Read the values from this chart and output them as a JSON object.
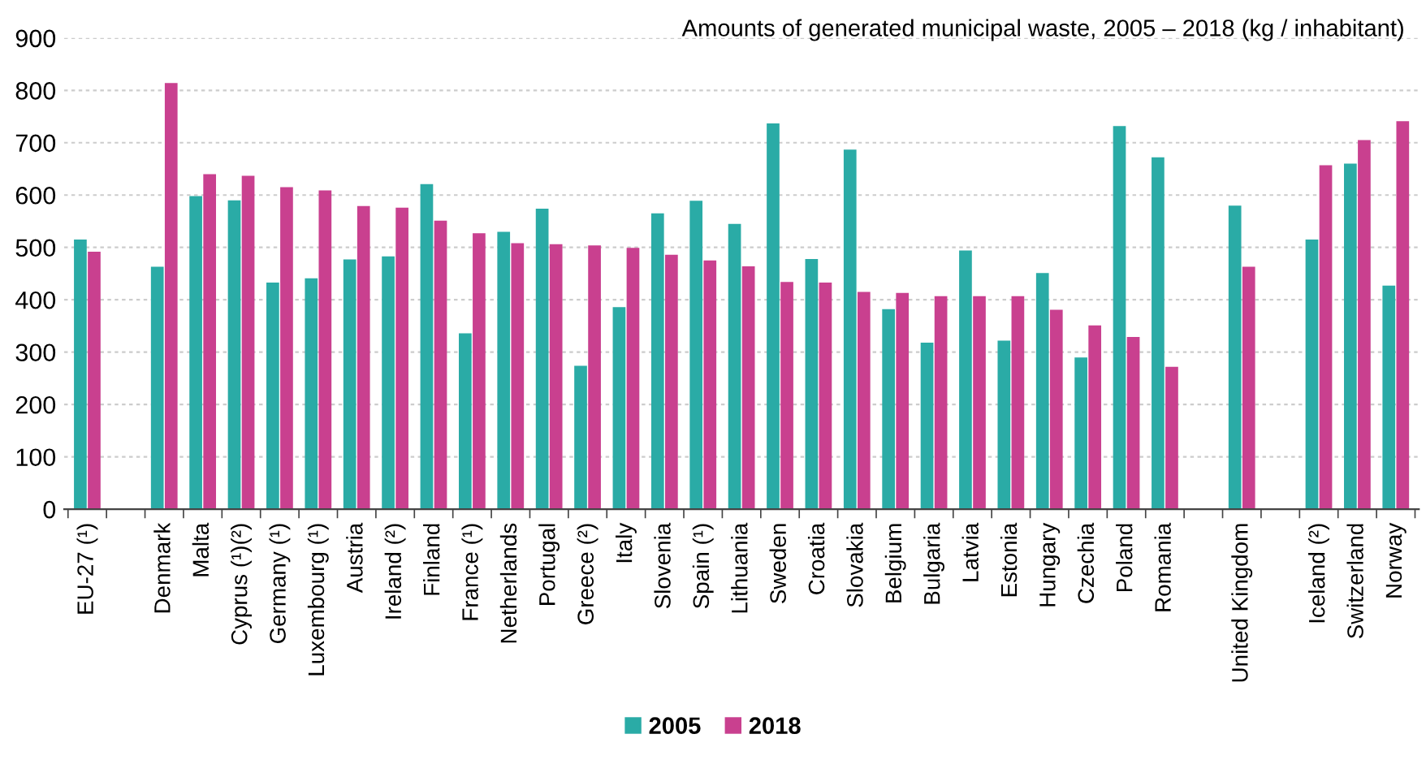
{
  "chart_data": {
    "type": "bar",
    "title": "Amounts of generated municipal waste, 2005 – 2018 (kg / inhabitant)",
    "categories": [
      "EU-27 (¹)",
      null,
      "Denmark",
      "Malta",
      "Cyprus (¹)(²)",
      "Germany (¹)",
      "Luxembourg (¹)",
      "Austria",
      "Ireland (²)",
      "Finland",
      "France (¹)",
      "Netherlands",
      "Portugal",
      "Greece (²)",
      "Italy",
      "Slovenia",
      "Spain (¹)",
      "Lithuania",
      "Sweden",
      "Croatia",
      "Slovakia",
      "Belgium",
      "Bulgaria",
      "Latvia",
      "Estonia",
      "Hungary",
      "Czechia",
      "Poland",
      "Romania",
      null,
      "United Kingdom",
      null,
      "Iceland (²)",
      "Switzerland",
      "Norway"
    ],
    "series": [
      {
        "name": "2005",
        "color": "#2aaba6",
        "values": [
          515,
          null,
          463,
          598,
          590,
          433,
          441,
          477,
          483,
          621,
          336,
          530,
          574,
          274,
          386,
          565,
          589,
          545,
          737,
          478,
          687,
          382,
          318,
          494,
          322,
          451,
          290,
          732,
          672,
          null,
          580,
          null,
          515,
          660,
          427
        ]
      },
      {
        "name": "2018",
        "color": "#c9408f",
        "values": [
          492,
          null,
          814,
          640,
          637,
          615,
          609,
          579,
          576,
          551,
          527,
          508,
          506,
          504,
          499,
          486,
          475,
          464,
          434,
          433,
          415,
          413,
          407,
          407,
          407,
          381,
          351,
          329,
          272,
          null,
          463,
          null,
          657,
          705,
          741
        ]
      }
    ],
    "ylim": [
      0,
      900
    ],
    "yticks": [
      0,
      100,
      200,
      300,
      400,
      500,
      600,
      700,
      800,
      900
    ],
    "grid": "y",
    "legend": "bottom"
  }
}
